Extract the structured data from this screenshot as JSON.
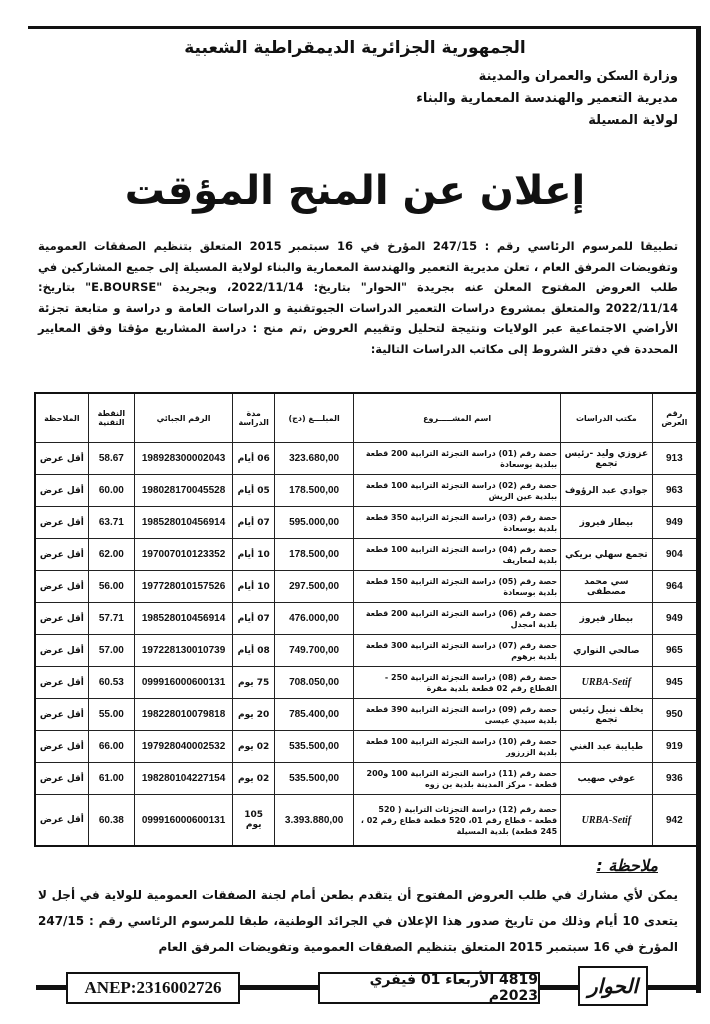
{
  "header": {
    "republic": "الجمهورية الجزائرية الديمقراطية الشعبية",
    "ministry": "وزارة السكن والعمران والمدينة",
    "directorate": "مديرية التعمير والهندسة المعمارية والبناء",
    "wilaya": "لولاية المسيلة"
  },
  "title": "إعلان عن المنح المؤقت",
  "intro": "تطبيقا للمرسوم الرئاسي رقم : 247/15 المؤرخ في 16 سبتمبر 2015 المتعلق بتنظيم الصفقات العمومية وتفويضات المرفق العام ، تعلن مديرية التعمير والهندسة المعمارية والبناء لولاية المسيلة إلى جميع المشاركين في طلب العروض المفتوح المعلن عنه بجريدة \"الحوار\" بتاريخ: 2022/11/14، وبجريدة \"E.BOURSE\" بتاريخ: 2022/11/14 والمتعلق بمشروع دراسات التعمير الدراسات الجيوتقنية و الدراسات العامة و دراسة و متابعة تجزئة الأراضي الاجتماعية عبر الولايات ونتيجة لتحليل وتقييم العروض ,تم منح : دراسة المشاريع مؤقتا وفق المعايير المحددة في دفتر الشروط إلى مكاتب الدراسات التالية:",
  "table": {
    "headers": [
      "رقم العرض",
      "مكتب الدراسات",
      "اسم المشـــــروع",
      "المبلـــغ (دج)",
      "مدة الدراسة",
      "الرقم الجبائي",
      "النقطة التقنية",
      "الملاحظة"
    ],
    "rows": [
      [
        "913",
        "عزوزي وليد -رئيس تجمع",
        "حصة رقم (01) دراسة التجزئة الترابية 200 قطعة ببلدية بوسعادة",
        "323.680,00",
        "06 أيام",
        "198928300002043",
        "58.67",
        "أقل عرض"
      ],
      [
        "963",
        "جوادي عبد الرؤوف",
        "حصة رقم (02) دراسة التجزئة الترابية 100 قطعة ببلدية عين الريش",
        "178.500,00",
        "05 أيام",
        "198028170045528",
        "60.00",
        "أقل عرض"
      ],
      [
        "949",
        "بيطار فيروز",
        "حصة رقم (03) دراسة التجزئة الترابية 350 قطعة بلدية بوسعادة",
        "595.000,00",
        "07 أيام",
        "198528010456914",
        "63.71",
        "أقل عرض"
      ],
      [
        "904",
        "تجمع سهلي بريكي",
        "حصة رقم (04) دراسة التجزئة الترابية 100 قطعة بلدية لمعاريف",
        "178.500,00",
        "10 أيام",
        "197007010123352",
        "62.00",
        "أقل عرض"
      ],
      [
        "964",
        "سي محمد مصطفى",
        "حصة رقم (05) دراسة التجزئة الترابية 150 قطعة بلدية بوسعادة",
        "297.500,00",
        "10 أيام",
        "197728010157526",
        "56.00",
        "أقل عرض"
      ],
      [
        "949",
        "بيطار فيروز",
        "حصة رقم (06) دراسة التجزئة الترابية 200 قطعة بلدية امجدل",
        "476.000,00",
        "07 أيام",
        "198528010456914",
        "57.71",
        "أقل عرض"
      ],
      [
        "965",
        "صالحي النواري",
        "حصة رقم (07) دراسة التجزئة الترابية 300 قطعة بلدية برهوم",
        "749.700,00",
        "08 أيام",
        "197228130010739",
        "57.00",
        "أقل عرض"
      ],
      [
        "945",
        "URBA-Setif",
        "حصة رقم (08) دراسة التجزئة الترابية 250 - القطاع رقم 02 قطعة بلدية مقرة",
        "708.050,00",
        "75 يوم",
        "099916000600131",
        "60.53",
        "أقل عرض"
      ],
      [
        "950",
        "يخلف نبيل رئيس تجمع",
        "حصة رقم (09) دراسة التجزئة الترابية 390 قطعة بلدية سيدي عيسى",
        "785.400,00",
        "20 يوم",
        "198228010079818",
        "55.00",
        "أقل عرض"
      ],
      [
        "919",
        "طيايبة عبد الغني",
        "حصة رقم (10) دراسة التجزئة الترابية 100 قطعة بلدية الزرزور",
        "535.500,00",
        "02 يوم",
        "197928040002532",
        "66.00",
        "أقل عرض"
      ],
      [
        "936",
        "عوفي صهيب",
        "حصة رقم (11) دراسة التجزئة الترابية 100 و200 قطعة - مركز المدينة بلدية بن زوه",
        "535.500,00",
        "02 يوم",
        "198280104227154",
        "61.00",
        "أقل عرض"
      ],
      [
        "942",
        "URBA-Setif",
        "حصة رقم (12) دراسة التجزئات الترابية ( 520 قطعة - قطاع رقم 01، 520 قطعة قطاع رقم 02 ، 245 قطعة) بلدية المسيلة",
        "3.393.880,00",
        "105 يوم",
        "099916000600131",
        "60.38",
        "أقل عرض"
      ]
    ]
  },
  "note": {
    "title": "ملاحظة :",
    "text": "يمكن لأي مشارك في طلب العروض المفتوح أن يتقدم بطعن أمام لجنة الصفقات العمومية للولاية في أجل لا يتعدى 10 أيام وذلك من تاريخ صدور هذا الإعلان في الجرائد الوطنية، طبقا للمرسوم الرئاسي رقم : 247/15 المؤرخ في 16 سبتمبر 2015 المتعلق بتنظيم الصفقات العمومية وتفويضات المرفق العام"
  },
  "footer": {
    "anep": "ANEP:2316002726",
    "issue": "4819 الأربعاء 01 فيفري 2023م",
    "logo": "الحوار"
  }
}
